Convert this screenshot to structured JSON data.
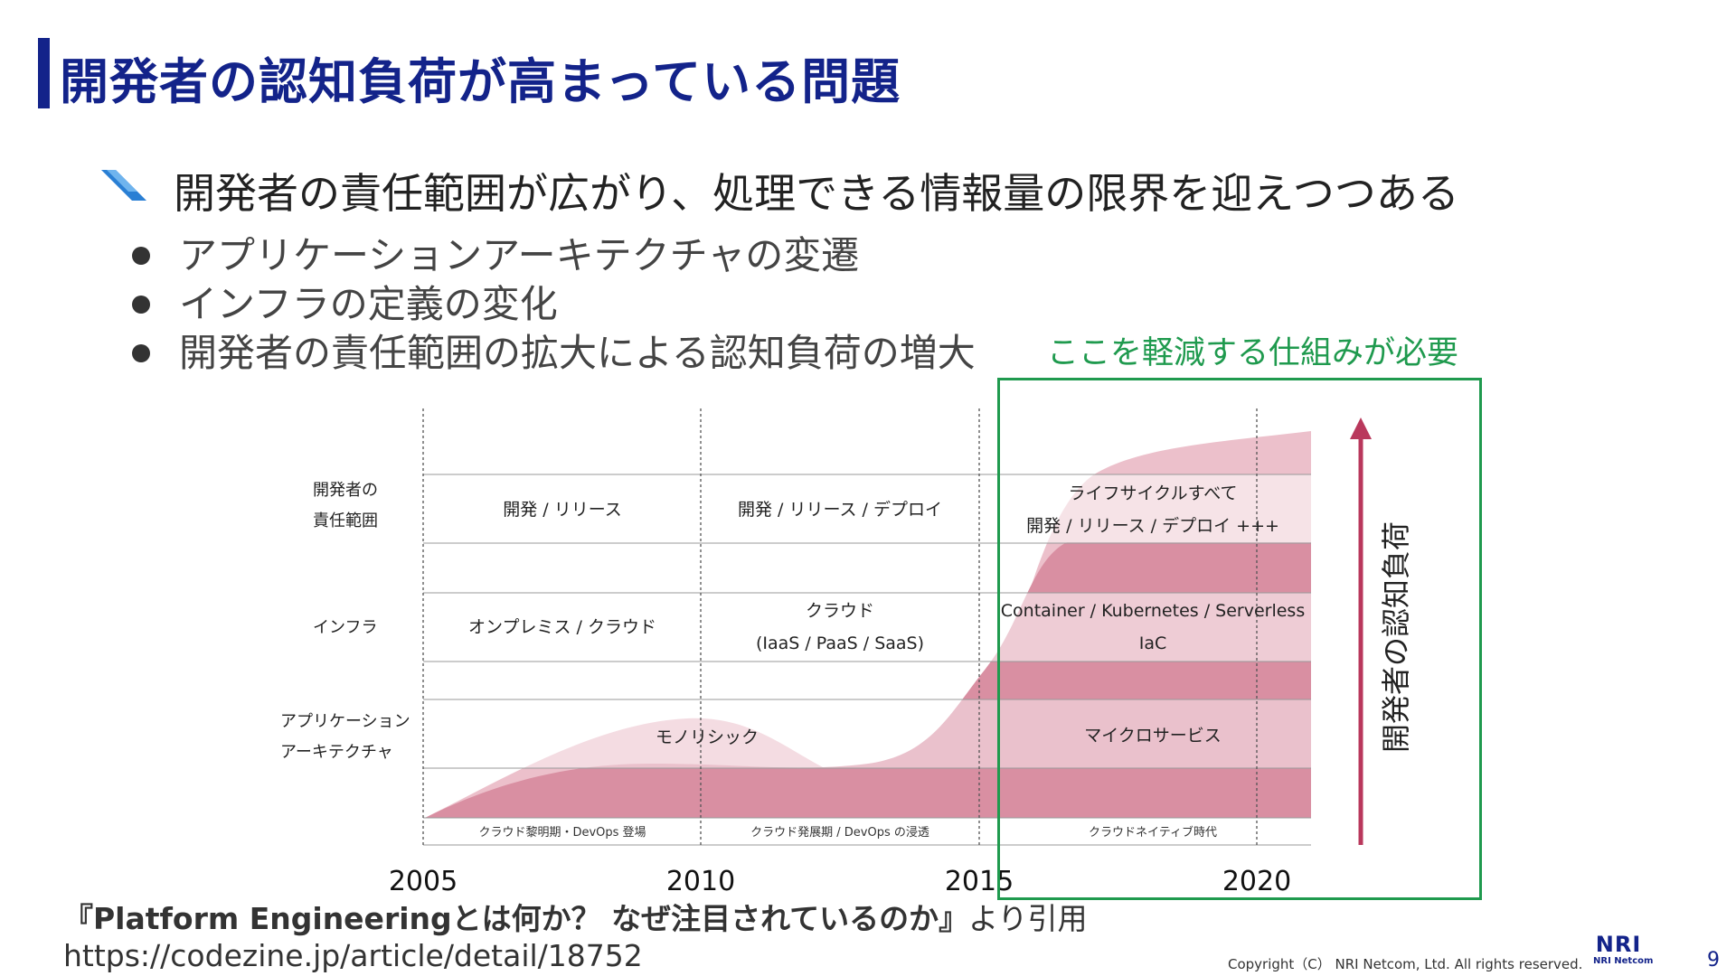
{
  "title": "開発者の認知負荷が高まっている問題",
  "main_bullet": "開発者の責任範囲が広がり、処理できる情報量の限界を迎えつつある",
  "sub_bullets": [
    "アプリケーションアーキテクチャの変遷",
    "インフラの定義の変化",
    "開発者の責任範囲の拡大による認知負荷の増大"
  ],
  "callout": "ここを軽減する仕組みが必要",
  "diagram": {
    "row_labels": {
      "responsibility": [
        "開発者の",
        "責任範囲"
      ],
      "infra": "インフラ",
      "architecture": [
        "アプリケーション",
        "アーキテクチャ"
      ]
    },
    "cells": {
      "responsibility": [
        "開発 / リリース",
        "開発 / リリース / デプロイ",
        "ライフサイクルすべて",
        "開発 / リリース / デプロイ +++"
      ],
      "infra": [
        "オンプレミス / クラウド",
        "クラウド",
        "(IaaS / PaaS / SaaS)",
        "Container / Kubernetes / Serverless",
        "IaC"
      ],
      "architecture": [
        "モノリシック",
        "マイクロサービス"
      ]
    },
    "eras": [
      "クラウド黎明期・DevOps 登場",
      "クラウド発展期 / DevOps の浸透",
      "クラウドネイティブ時代"
    ],
    "years": [
      "2005",
      "2010",
      "2015",
      "2020"
    ],
    "arrow_label": "開発者の認知負荷",
    "colors": {
      "area_dark": "#d98fa2",
      "area_light": "#ecc0cb",
      "arrow": "#b9385c",
      "highlight": "#1f9a4e"
    }
  },
  "source": {
    "title": "『Platform Engineeringとは何か？ なぜ注目されているのか』",
    "suffix": "より引用",
    "url": "https://codezine.jp/article/detail/18752"
  },
  "footer": {
    "copyright": "Copyright（C） NRI Netcom, Ltd. All rights reserved.",
    "logo": "NRI",
    "logo_sub": "NRI Netcom",
    "page": "9"
  }
}
